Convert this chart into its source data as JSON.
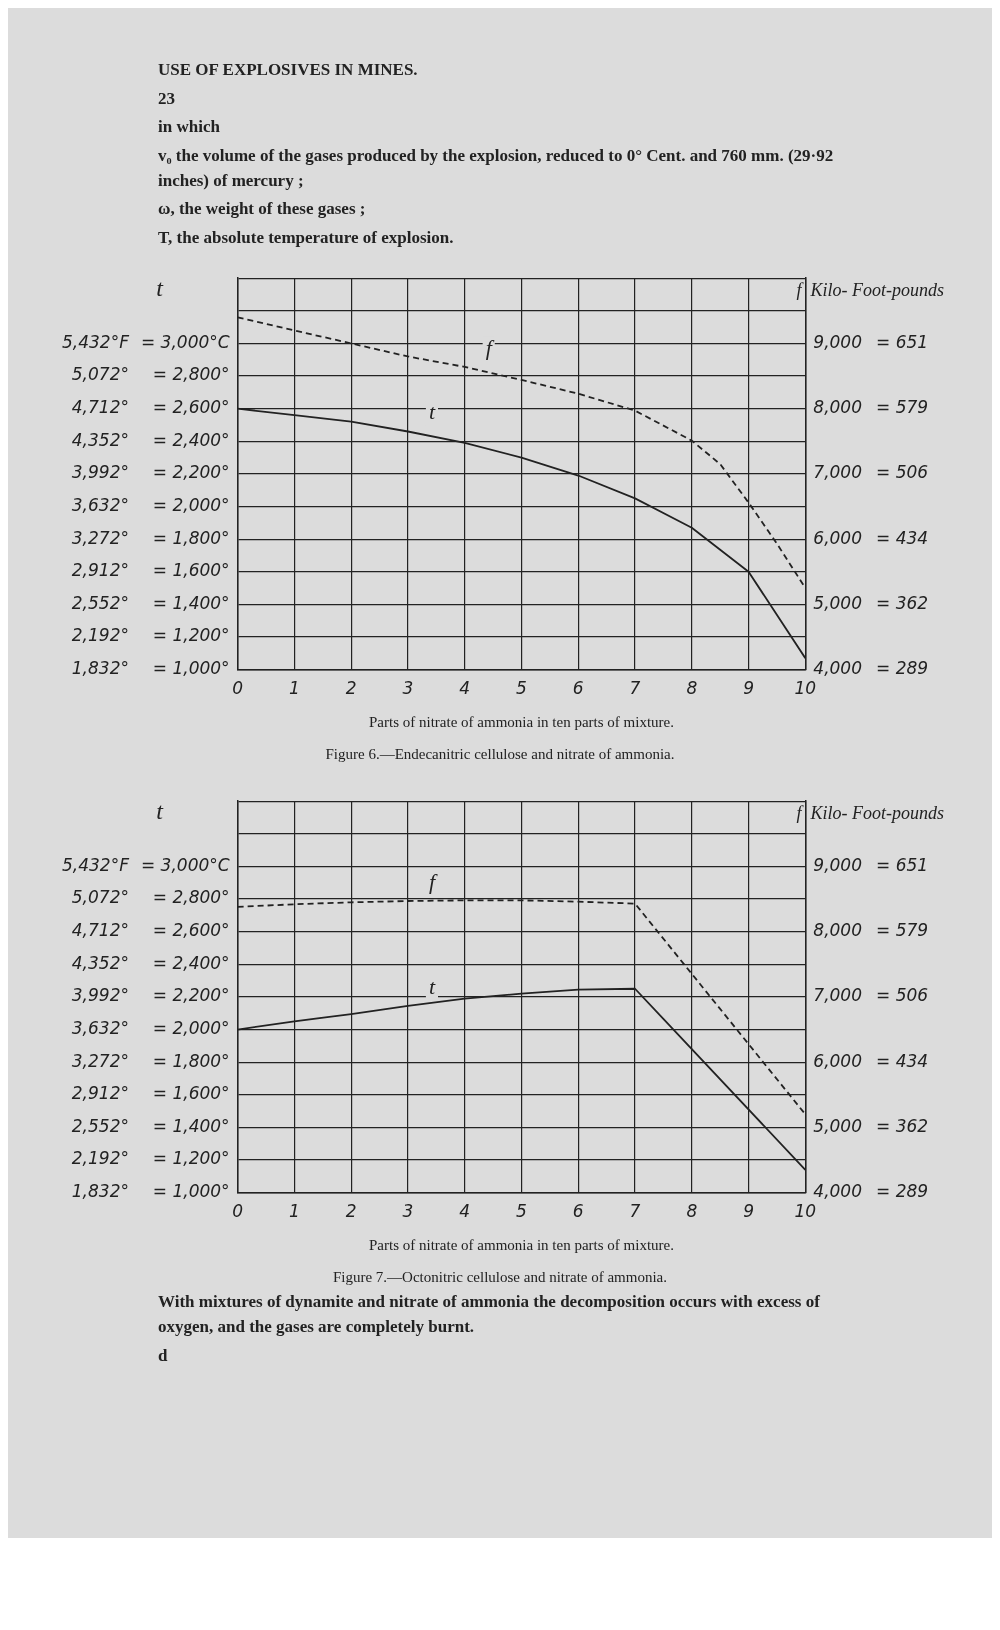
{
  "chart_data": [
    {
      "type": "line",
      "title": "Figure 6.—Endecanitric cellulose and nitrate of ammonia.",
      "xlabel": "Parts of nitrate of ammonia in ten parts of mixture.",
      "ylabel": "t",
      "y2label": "f  Kilo- Foot-pounds",
      "annotations": [
        "USE OF EXPLOSIVES IN MINES.",
        "23",
        "in which",
        "v₀ the volume of the gases produced by the explosion, reduced to 0° Cent. and 760 mm. (29·92 inches) of mercury ;",
        "ω, the weight of these gases ;",
        "T, the absolute temperature of explosion.",
        "= 289",
        "= 362",
        "= 434",
        "= 506",
        "= 579",
        "= 651"
      ],
      "x": [
        0,
        1,
        2,
        3,
        4,
        5,
        6,
        7,
        8,
        8.5,
        9,
        9.5,
        10
      ],
      "series": [
        {
          "name": "t",
          "color": "#222222",
          "line_style": "solid",
          "x": [
            0,
            1,
            2,
            3,
            4,
            5,
            6,
            7,
            8,
            9,
            10
          ],
          "values": [
            2600,
            2560,
            2520,
            2460,
            2390,
            2300,
            2190,
            2050,
            1870,
            1600,
            1070
          ]
        },
        {
          "name": "f",
          "color": "#222222",
          "line_style": "dashed",
          "axis": "y2",
          "values": [
            9400,
            9200,
            9000,
            8800,
            8640,
            8440,
            8230,
            7970,
            7510,
            7150,
            6560,
            5930,
            5250
          ]
        }
      ],
      "xlim": [
        0,
        10
      ],
      "xticks": [
        0,
        1,
        2,
        3,
        4,
        5,
        6,
        7,
        8,
        9,
        10
      ],
      "ylim": [
        1000,
        3400
      ],
      "yticks": [
        {
          "value": 1000,
          "label": "= 1,000°"
        },
        {
          "value": 1200,
          "label": "= 1,200°"
        },
        {
          "value": 1400,
          "label": "= 1,400°"
        },
        {
          "value": 1600,
          "label": "= 1,600°"
        },
        {
          "value": 1800,
          "label": "= 1,800°"
        },
        {
          "value": 2000,
          "label": "= 2,000°"
        },
        {
          "value": 2200,
          "label": "= 2,200°"
        },
        {
          "value": 2400,
          "label": "= 2,400°"
        },
        {
          "value": 2600,
          "label": "= 2,600°"
        },
        {
          "value": 2800,
          "label": "= 2,800°"
        },
        {
          "value": 3000,
          "label": "= 3,000°C"
        },
        {
          "value": 3200,
          "label": null
        },
        {
          "value": 3400,
          "label": null
        }
      ],
      "y3lim": [
        1832,
        6152
      ],
      "y3ticks": [
        {
          "value": 1832,
          "label": "1,832°"
        },
        {
          "value": 2192,
          "label": "2,192°"
        },
        {
          "value": 2552,
          "label": "2,552°"
        },
        {
          "value": 2912,
          "label": "2,912°"
        },
        {
          "value": 3272,
          "label": "3,272°"
        },
        {
          "value": 3632,
          "label": "3,632°"
        },
        {
          "value": 3992,
          "label": "3,992°"
        },
        {
          "value": 4352,
          "label": "4,352°"
        },
        {
          "value": 4712,
          "label": "4,712°"
        },
        {
          "value": 5072,
          "label": "5,072°"
        },
        {
          "value": 5432,
          "label": "5,432°F"
        }
      ],
      "y2lim": [
        4000,
        10000
      ],
      "y2ticks": [
        {
          "value": 4000,
          "label": "4,000"
        },
        {
          "value": 5000,
          "label": "5,000"
        },
        {
          "value": 6000,
          "label": "6,000"
        },
        {
          "value": 7000,
          "label": "7,000"
        },
        {
          "value": 8000,
          "label": "8,000"
        },
        {
          "value": 9000,
          "label": "9,000"
        }
      ],
      "grid": true,
      "legend": false,
      "marker": "none"
    },
    {
      "type": "line",
      "title": "Figure 7.—Octonitric cellulose and nitrate of ammonia.",
      "xlabel": "Parts of nitrate of ammonia in ten parts of mixture.",
      "ylabel": "t",
      "y2label": "f  Kilo- Foot-pounds",
      "annotations": [
        "With mixtures of dynamite and nitrate of ammonia the decomposition occurs with excess of oxygen, and the gases are completely burnt.",
        "d",
        "= 289",
        "= 362",
        "= 434",
        "= 506",
        "= 579",
        "= 651"
      ],
      "x": [
        0,
        1,
        2,
        3,
        4,
        5,
        6,
        7,
        10
      ],
      "series": [
        {
          "name": "t",
          "color": "#222222",
          "line_style": "solid",
          "values": [
            2000,
            2050,
            2095,
            2145,
            2190,
            2220,
            2245,
            2250,
            1140
          ]
        },
        {
          "name": "f",
          "color": "#222222",
          "line_style": "dashed",
          "axis": "y2",
          "values": [
            8380,
            8420,
            8450,
            8470,
            8480,
            8480,
            8460,
            8430,
            5200
          ]
        }
      ],
      "xlim": [
        0,
        10
      ],
      "xticks": [
        0,
        1,
        2,
        3,
        4,
        5,
        6,
        7,
        8,
        9,
        10
      ],
      "ylim": [
        1000,
        3400
      ],
      "yticks": [
        {
          "value": 1000,
          "label": "= 1,000°"
        },
        {
          "value": 1200,
          "label": "= 1,200°"
        },
        {
          "value": 1400,
          "label": "= 1,400°"
        },
        {
          "value": 1600,
          "label": "= 1,600°"
        },
        {
          "value": 1800,
          "label": "= 1,800°"
        },
        {
          "value": 2000,
          "label": "= 2,000°"
        },
        {
          "value": 2200,
          "label": "= 2,200°"
        },
        {
          "value": 2400,
          "label": "= 2,400°"
        },
        {
          "value": 2600,
          "label": "= 2,600°"
        },
        {
          "value": 2800,
          "label": "= 2,800°"
        },
        {
          "value": 3000,
          "label": "= 3,000°C"
        },
        {
          "value": 3200,
          "label": null
        },
        {
          "value": 3400,
          "label": null
        }
      ],
      "y3lim": [
        1832,
        6152
      ],
      "y3ticks": [
        {
          "value": 1832,
          "label": "1,832°"
        },
        {
          "value": 2192,
          "label": "2,192°"
        },
        {
          "value": 2552,
          "label": "2,552°"
        },
        {
          "value": 2912,
          "label": "2,912°"
        },
        {
          "value": 3272,
          "label": "3,272°"
        },
        {
          "value": 3632,
          "label": "3,632°"
        },
        {
          "value": 3992,
          "label": "3,992°"
        },
        {
          "value": 4352,
          "label": "4,352°"
        },
        {
          "value": 4712,
          "label": "4,712°"
        },
        {
          "value": 5072,
          "label": "5,072°"
        },
        {
          "value": 5432,
          "label": "5,432°F"
        }
      ],
      "y2lim": [
        4000,
        10000
      ],
      "y2ticks": [
        {
          "value": 4000,
          "label": "4,000"
        },
        {
          "value": 5000,
          "label": "5,000"
        },
        {
          "value": 6000,
          "label": "6,000"
        },
        {
          "value": 7000,
          "label": "7,000"
        },
        {
          "value": 8000,
          "label": "8,000"
        },
        {
          "value": 9000,
          "label": "9,000"
        }
      ],
      "grid": true,
      "legend": false,
      "marker": "none"
    }
  ]
}
